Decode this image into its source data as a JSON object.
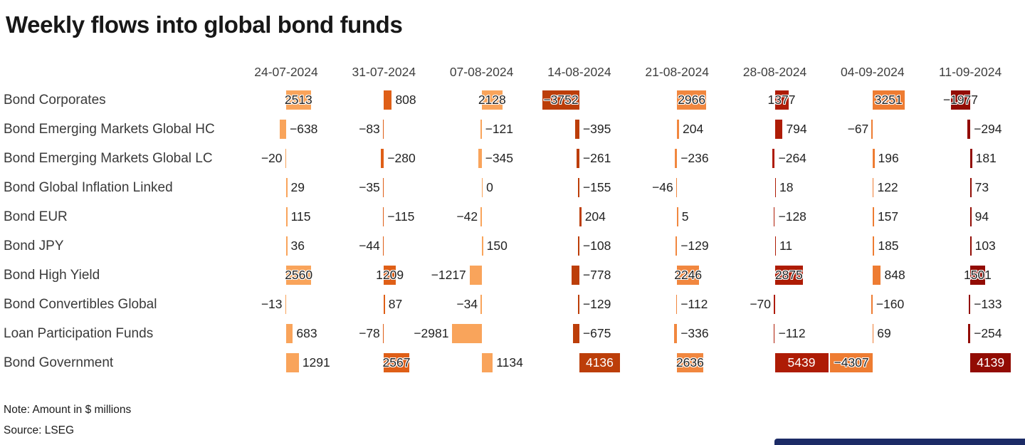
{
  "title": "Weekly flows into global bond funds",
  "note": "Note: Amount in $ millions",
  "source": "Source: LSEG",
  "brand_bar_color": "#1c2b66",
  "chart_data": {
    "type": "bar",
    "layout": "grid-of-horizontal-bars",
    "unit": "$ millions",
    "legend": "none",
    "columns": [
      "24-07-2024",
      "31-07-2024",
      "07-08-2024",
      "14-08-2024",
      "21-08-2024",
      "28-08-2024",
      "04-09-2024",
      "11-09-2024"
    ],
    "column_colors": [
      "#f9a45b",
      "#df5f17",
      "#f9a45b",
      "#bc3e09",
      "#f1873f",
      "#ae1c05",
      "#ee7c32",
      "#920c03"
    ],
    "rows": [
      {
        "name": "Bond Corporates",
        "values": [
          2513,
          808,
          2128,
          -3752,
          2966,
          1377,
          3251,
          -1977
        ]
      },
      {
        "name": "Bond Emerging Markets Global HC",
        "values": [
          -638,
          -83,
          -121,
          -395,
          204,
          794,
          -67,
          -294
        ]
      },
      {
        "name": "Bond Emerging Markets Global LC",
        "values": [
          -20,
          -280,
          -345,
          -261,
          -236,
          -264,
          196,
          181
        ]
      },
      {
        "name": "Bond Global Inflation Linked",
        "values": [
          29,
          -35,
          0,
          -155,
          -46,
          18,
          122,
          73
        ]
      },
      {
        "name": "Bond EUR",
        "values": [
          115,
          -115,
          -42,
          204,
          5,
          -128,
          157,
          94
        ]
      },
      {
        "name": "Bond JPY",
        "values": [
          36,
          -44,
          150,
          -108,
          -129,
          11,
          185,
          103
        ]
      },
      {
        "name": "Bond High Yield",
        "values": [
          2560,
          1209,
          -1217,
          -778,
          2246,
          2875,
          848,
          1501
        ]
      },
      {
        "name": "Bond Convertibles Global",
        "values": [
          -13,
          87,
          -34,
          -129,
          -112,
          -70,
          -160,
          -133
        ]
      },
      {
        "name": "Loan Participation Funds",
        "values": [
          683,
          -78,
          -2981,
          -675,
          -336,
          -112,
          69,
          -254
        ]
      },
      {
        "name": "Bond Government",
        "values": [
          1291,
          2567,
          1134,
          4136,
          2636,
          5439,
          -4307,
          4139
        ]
      }
    ]
  }
}
